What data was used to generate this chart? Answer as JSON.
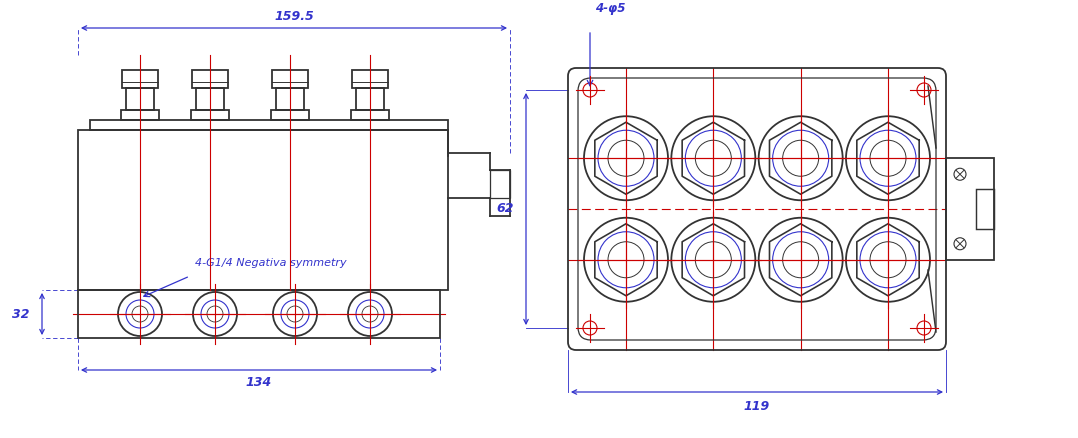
{
  "bg_color": "#ffffff",
  "body_color": "#333333",
  "dim_color": "#3333cc",
  "red_color": "#cc0000",
  "fig_width": 10.78,
  "fig_height": 4.38,
  "left_view": {
    "label_159_5": "159.5",
    "label_134": "134",
    "label_32": "32",
    "note": "4-G1/4 Negativa symmetry"
  },
  "right_view": {
    "label_119": "119",
    "label_62": "62",
    "note": "4-φ5"
  }
}
